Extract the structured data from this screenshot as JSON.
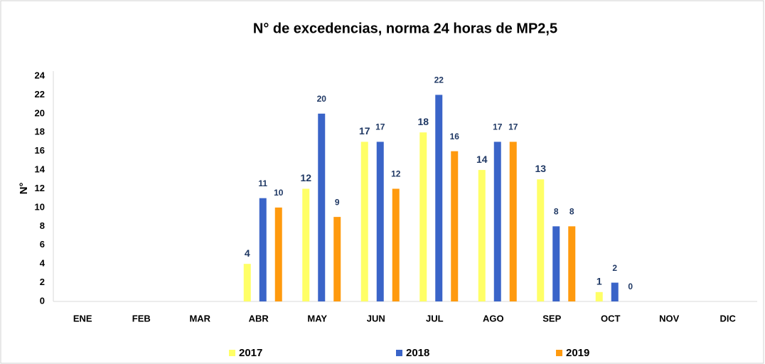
{
  "chart_data": {
    "type": "bar",
    "title": "N° de excedencias, norma 24 horas de MP2,5",
    "y_label": "N°",
    "categories": [
      "ENE",
      "FEB",
      "MAR",
      "ABR",
      "MAY",
      "JUN",
      "JUL",
      "AGO",
      "SEP",
      "OCT",
      "NOV",
      "DIC"
    ],
    "series": [
      {
        "name": "2017",
        "color": "#ffff66",
        "values": [
          null,
          null,
          null,
          4,
          12,
          17,
          18,
          14,
          13,
          1,
          null,
          null
        ]
      },
      {
        "name": "2018",
        "color": "#3a64c8",
        "values": [
          null,
          null,
          null,
          11,
          20,
          17,
          22,
          17,
          8,
          2,
          null,
          null
        ]
      },
      {
        "name": "2019",
        "color": "#ff9a0e",
        "values": [
          null,
          null,
          null,
          10,
          9,
          12,
          16,
          17,
          8,
          0,
          null,
          null
        ]
      }
    ],
    "ylim": [
      0,
      24
    ],
    "yticks": [
      0,
      2,
      4,
      6,
      8,
      10,
      12,
      14,
      16,
      18,
      20,
      22,
      24
    ],
    "grid": false,
    "legend": "bottom"
  }
}
